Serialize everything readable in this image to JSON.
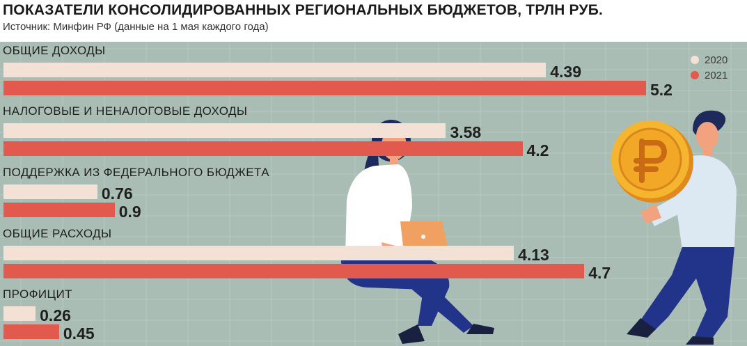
{
  "title": "ПОКАЗАТЕЛИ КОНСОЛИДИРОВАННЫХ РЕГИОНАЛЬНЫХ БЮДЖЕТОВ, ТРЛН РУБ.",
  "subtitle": "Источник: Минфин РФ (данные на 1 мая каждого года)",
  "colors": {
    "panel": "#a9bdb5",
    "bar_2020": "#f3e1d6",
    "bar_2021": "#e15a4d"
  },
  "chart_data": {
    "type": "bar",
    "orientation": "horizontal",
    "categories": [
      "ОБЩИЕ ДОХОДЫ",
      "НАЛОГОВЫЕ И НЕНАЛОГОВЫЕ ДОХОДЫ",
      "ПОДДЕРЖКА ИЗ ФЕДЕРАЛЬНОГО БЮДЖЕТА",
      "ОБЩИЕ РАСХОДЫ",
      "ПРОФИЦИТ"
    ],
    "series": [
      {
        "name": "2020",
        "color": "#f3e1d6",
        "values": [
          4.39,
          3.58,
          0.76,
          4.13,
          0.26
        ],
        "labels": [
          "4.39",
          "3.58",
          "0.76",
          "4.13",
          "0.26"
        ]
      },
      {
        "name": "2021",
        "color": "#e15a4d",
        "values": [
          5.2,
          4.2,
          0.9,
          4.7,
          0.45
        ],
        "labels": [
          "5.2",
          "4.2",
          "0.9",
          "4.7",
          "0.45"
        ]
      }
    ],
    "xlim": [
      0,
      5.2
    ],
    "grid": false,
    "legend_position": "top-right"
  },
  "illustration": {
    "coin_icon": "ruble-coin-icon",
    "woman_icon": "woman-with-laptop-icon",
    "man_icon": "man-carrying-coin-icon"
  }
}
